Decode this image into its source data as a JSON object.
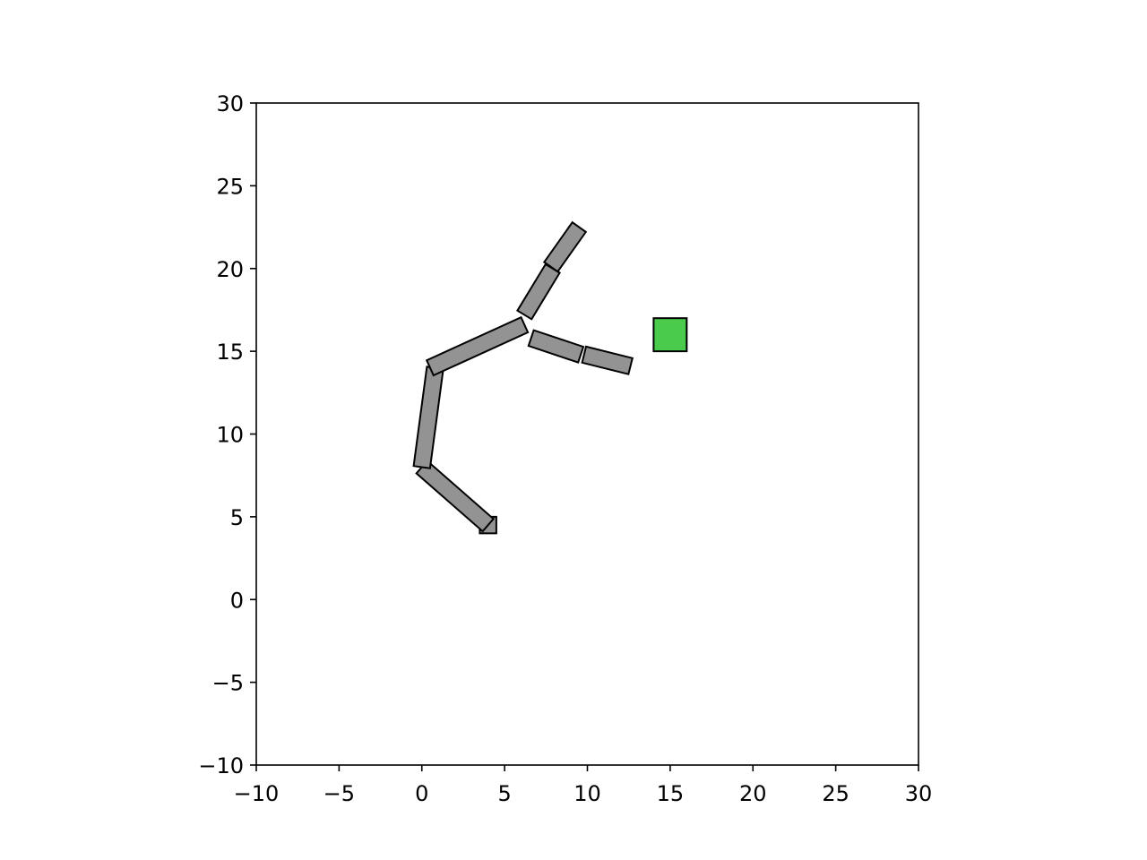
{
  "chart_data": {
    "type": "scatter",
    "title": "",
    "xlabel": "",
    "ylabel": "",
    "xlim": [
      -10,
      30
    ],
    "ylim": [
      -10,
      30
    ],
    "x_ticks": [
      -10,
      -5,
      0,
      5,
      10,
      15,
      20,
      25,
      30
    ],
    "y_ticks": [
      -10,
      -5,
      0,
      5,
      10,
      15,
      20,
      25,
      30
    ],
    "x_tick_labels": [
      "−10",
      "−5",
      "0",
      "5",
      "10",
      "15",
      "20",
      "25",
      "30"
    ],
    "y_tick_labels": [
      "−10",
      "−5",
      "0",
      "5",
      "10",
      "15",
      "20",
      "25",
      "30"
    ],
    "grid": false,
    "aspect": "equal",
    "base_point": [
      4,
      4.5
    ],
    "base_marker_size": 1.0,
    "link_width": 1.0,
    "links": [
      {
        "from": [
          4.0,
          4.5
        ],
        "to": [
          0.0,
          8.0
        ]
      },
      {
        "from": [
          0.0,
          8.0
        ],
        "to": [
          0.8,
          14.0
        ]
      },
      {
        "from": [
          0.5,
          14.0
        ],
        "to": [
          6.2,
          16.6
        ]
      },
      {
        "from": [
          6.2,
          17.2
        ],
        "to": [
          7.9,
          20.0
        ]
      },
      {
        "from": [
          7.8,
          20.1
        ],
        "to": [
          9.5,
          22.5
        ]
      },
      {
        "from": [
          6.6,
          15.8
        ],
        "to": [
          9.6,
          14.8
        ]
      },
      {
        "from": [
          9.8,
          14.8
        ],
        "to": [
          12.6,
          14.1
        ]
      }
    ],
    "target": {
      "x": 15,
      "y": 16,
      "size": 2.0
    },
    "colors": {
      "link_fill": "#939393",
      "edge": "#000000",
      "target_fill": "#4bcb4b",
      "axes_frame": "#000000",
      "background": "#ffffff"
    }
  }
}
